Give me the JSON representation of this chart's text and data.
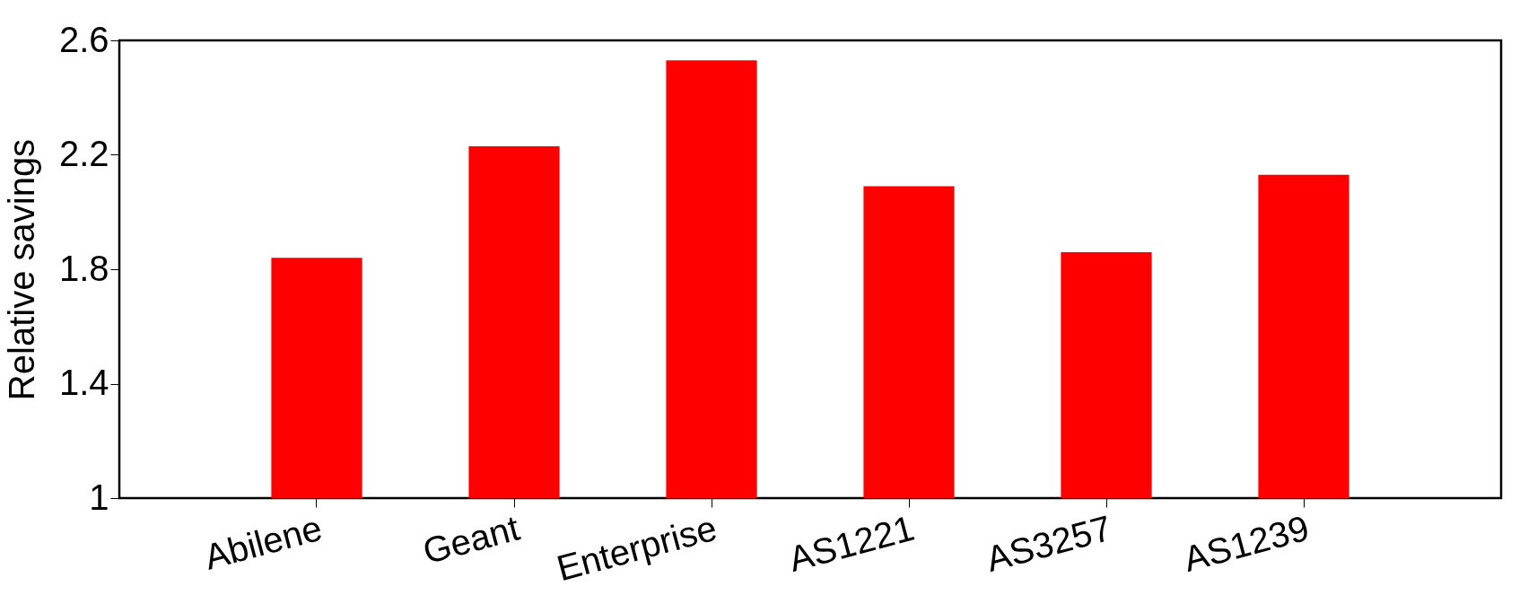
{
  "chart_data": {
    "type": "bar",
    "ylabel": "Relative savings",
    "categories": [
      "Abilene",
      "Geant",
      "Enterprise",
      "AS1221",
      "AS3257",
      "AS1239"
    ],
    "values": [
      1.84,
      2.23,
      2.53,
      2.09,
      1.86,
      2.13
    ],
    "color": "#ff0000",
    "ylim": [
      1,
      2.6
    ],
    "yticks": [
      1,
      1.4,
      1.8,
      2.2,
      2.6
    ],
    "grid": false
  }
}
